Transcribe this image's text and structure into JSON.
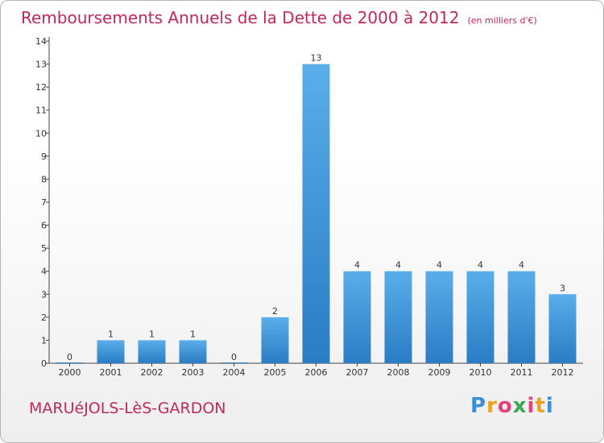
{
  "chart_data": {
    "type": "bar",
    "title": "Remboursements Annuels de la Dette de 2000 à 2012",
    "subtitle": "(en milliers d'€)",
    "categories": [
      "2000",
      "2001",
      "2002",
      "2003",
      "2004",
      "2005",
      "2006",
      "2007",
      "2008",
      "2009",
      "2010",
      "2011",
      "2012"
    ],
    "values": [
      0,
      1,
      1,
      1,
      0,
      2,
      13,
      4,
      4,
      4,
      4,
      4,
      3
    ],
    "ylim": [
      0,
      14
    ],
    "yticks": [
      "0",
      "1",
      "2",
      "3",
      "4",
      "5",
      "6",
      "7",
      "8",
      "9",
      "10",
      "11",
      "12",
      "13",
      "14"
    ],
    "grid": false,
    "xlabel": "",
    "ylabel": ""
  },
  "footer": {
    "commune": "MARUéJOLS-LèS-GARDON",
    "logo_letters": [
      "P",
      "r",
      "o",
      "x",
      "i",
      "t",
      "i"
    ]
  },
  "colors": {
    "accent": "#c0285a",
    "bar_light": "#5aaee8",
    "bar_dark": "#2a7cc4"
  }
}
